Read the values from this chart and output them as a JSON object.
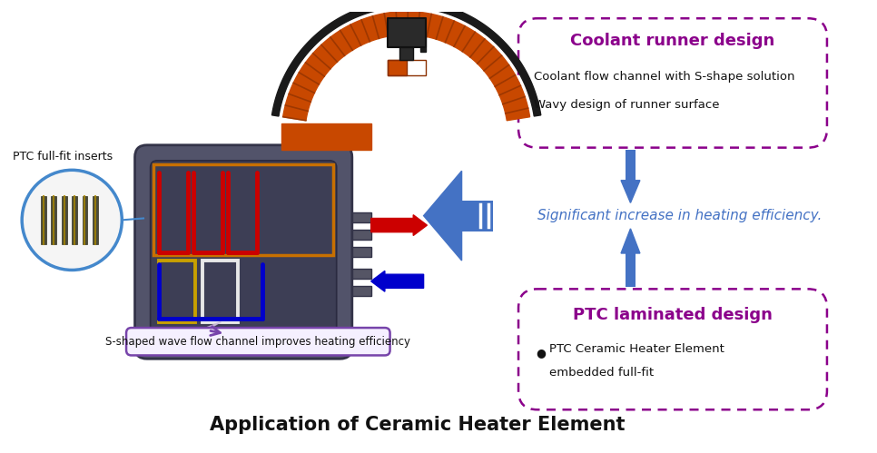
{
  "title": "Application of Ceramic Heater Element",
  "title_fontsize": 15,
  "title_fontweight": "bold",
  "bg_color": "#ffffff",
  "box1_title": "Coolant runner design",
  "box1_line1": "Coolant flow channel with S-shape solution",
  "box1_line2": "Wavy design of runner surface",
  "box2_title": "PTC laminated design",
  "box2_line1": "PTC Ceramic Heater Element",
  "box2_line2": "embedded full-fit",
  "middle_text": "Significant increase in heating efficiency.",
  "label_ptc": "PTC full-fit inserts",
  "label_s_shaped": "S-shaped wave flow channel improves heating efficiency",
  "box_color": "#8B008B",
  "arrow_color": "#4472c4",
  "middle_text_color": "#4472c4",
  "orange_color": "#c84800",
  "black_wire_color": "#1a1a1a",
  "red_loop_color": "#cc0000",
  "yellow_loop_color": "#c8a000",
  "blue_loop_color": "#0000cc",
  "ptc_circle_color": "#4488cc",
  "s_label_border": "#7744aa",
  "heater_outer_color": "#52536a",
  "heater_inner_color": "#3d3e55"
}
